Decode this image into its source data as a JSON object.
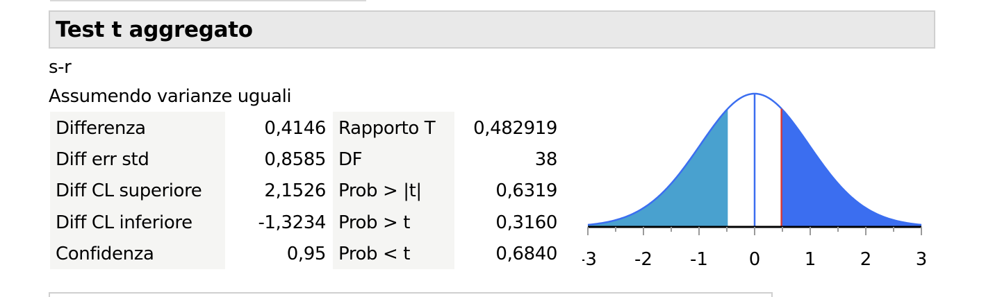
{
  "report": {
    "title": "Test t aggregato",
    "subtitle": "s-r",
    "assumption": "Assumendo varianze uguali"
  },
  "stats_left": [
    {
      "label": "Differenza",
      "value": "0,4146"
    },
    {
      "label": "Diff err std",
      "value": "0,8585"
    },
    {
      "label": "Diff CL superiore",
      "value": "2,1526"
    },
    {
      "label": "Diff CL inferiore",
      "value": "-1,3234"
    },
    {
      "label": "Confidenza",
      "value": "0,95"
    }
  ],
  "stats_right": [
    {
      "label": "Rapporto T",
      "value": "0,482919"
    },
    {
      "label": "DF",
      "value": "38"
    },
    {
      "label": "Prob > |t|",
      "value": "0,6319"
    },
    {
      "label": "Prob > t",
      "value": "0,3160"
    },
    {
      "label": "Prob < t",
      "value": "0,6840"
    }
  ],
  "chart_data": {
    "type": "area",
    "title": "",
    "xlabel": "",
    "ylabel": "",
    "xlim": [
      -3,
      3
    ],
    "x_ticks": [
      "-3",
      "-2",
      "-1",
      "0",
      "1",
      "2",
      "3"
    ],
    "distribution": "t",
    "df": 38,
    "t_ratio": 0.482919,
    "center_line": 0,
    "colors": {
      "left_tail": "#49a1cf",
      "right_tail": "#3b6ef0",
      "curve": "#3b6ef0",
      "center_line": "#3b6ef0",
      "t_line": "#d23a3a",
      "axis": "#000000"
    }
  }
}
